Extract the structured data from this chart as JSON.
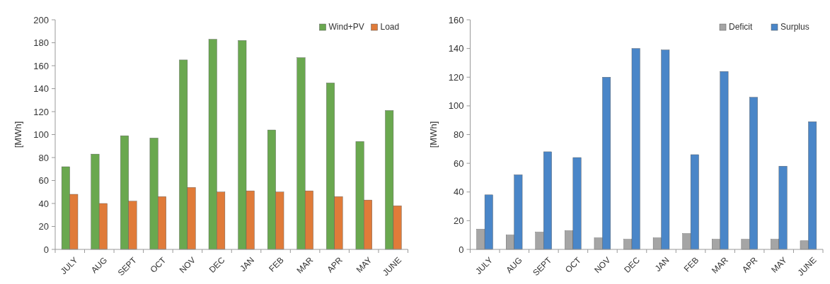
{
  "chart_data": [
    {
      "type": "bar",
      "ylabel": "[MWh]",
      "categories": [
        "JULY",
        "AUG",
        "SEPT",
        "OCT",
        "NOV",
        "DEC",
        "JAN",
        "FEB",
        "MAR",
        "APR",
        "MAY",
        "JUNE"
      ],
      "series": [
        {
          "name": "Wind+PV",
          "color": "#6aa84f",
          "values": [
            72,
            83,
            99,
            97,
            165,
            183,
            182,
            104,
            167,
            145,
            94,
            121
          ]
        },
        {
          "name": "Load",
          "color": "#e07b39",
          "values": [
            48,
            40,
            42,
            46,
            54,
            50,
            51,
            50,
            51,
            46,
            43,
            38
          ]
        }
      ],
      "ylim": [
        0,
        200
      ],
      "yticks": [
        0,
        20,
        40,
        60,
        80,
        100,
        120,
        140,
        160,
        180,
        200
      ],
      "grid": false,
      "legend": "top right"
    },
    {
      "type": "bar",
      "ylabel": "[MWh]",
      "categories": [
        "JULY",
        "AUG",
        "SEPT",
        "OCT",
        "NOV",
        "DEC",
        "JAN",
        "FEB",
        "MAR",
        "APR",
        "MAY",
        "JUNE"
      ],
      "series": [
        {
          "name": "Deficit",
          "color": "#a5a5a5",
          "values": [
            14,
            10,
            12,
            13,
            8,
            7,
            8,
            11,
            7,
            7,
            7,
            6
          ]
        },
        {
          "name": "Surplus",
          "color": "#4a86c8",
          "values": [
            38,
            52,
            68,
            64,
            120,
            140,
            139,
            66,
            124,
            106,
            58,
            89
          ]
        }
      ],
      "ylim": [
        0,
        160
      ],
      "yticks": [
        0,
        20,
        40,
        60,
        80,
        100,
        120,
        140,
        160
      ],
      "grid": false,
      "legend": "top right"
    }
  ]
}
